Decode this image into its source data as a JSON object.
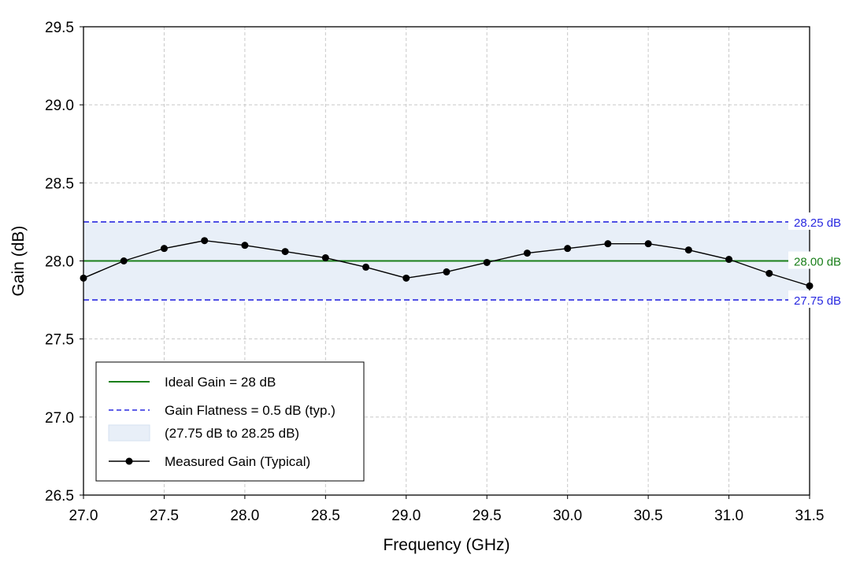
{
  "colors": {
    "ideal": "#1a7f1a",
    "flatness": "#2a2ae0",
    "band_fill": "#e8eff8",
    "measured": "#000000",
    "grid": "#c8c8c8"
  },
  "chart_data": {
    "type": "line",
    "xlabel": "Frequency (GHz)",
    "ylabel": "Gain (dB)",
    "xlim": [
      27.0,
      31.5
    ],
    "ylim": [
      26.5,
      29.5
    ],
    "xticks": [
      "27.0",
      "27.5",
      "28.0",
      "28.5",
      "29.0",
      "29.5",
      "30.0",
      "30.5",
      "31.0",
      "31.5"
    ],
    "yticks": [
      "26.5",
      "27.0",
      "27.5",
      "28.0",
      "28.5",
      "29.0",
      "29.5"
    ],
    "grid": true,
    "ideal_gain": 28.0,
    "flatness_band": [
      27.75,
      28.25
    ],
    "reference_labels": {
      "upper": "28.25 dB",
      "ideal": "28.00 dB",
      "lower": "27.75 dB"
    },
    "series": [
      {
        "name": "Measured Gain (Typical)",
        "x": [
          27.0,
          27.25,
          27.5,
          27.75,
          28.0,
          28.25,
          28.5,
          28.75,
          29.0,
          29.25,
          29.5,
          29.75,
          30.0,
          30.25,
          30.5,
          30.75,
          31.0,
          31.25,
          31.5
        ],
        "y": [
          27.89,
          28.0,
          28.08,
          28.13,
          28.1,
          28.06,
          28.02,
          27.96,
          27.89,
          27.93,
          27.99,
          28.05,
          28.08,
          28.11,
          28.11,
          28.07,
          28.01,
          27.92,
          27.84
        ]
      }
    ],
    "legend": {
      "position": "lower-left",
      "entries": [
        "Ideal Gain = 28 dB",
        "Gain Flatness = 0.5 dB (typ.)",
        "(27.75 dB to 28.25 dB)",
        "Measured Gain (Typical)"
      ]
    }
  }
}
